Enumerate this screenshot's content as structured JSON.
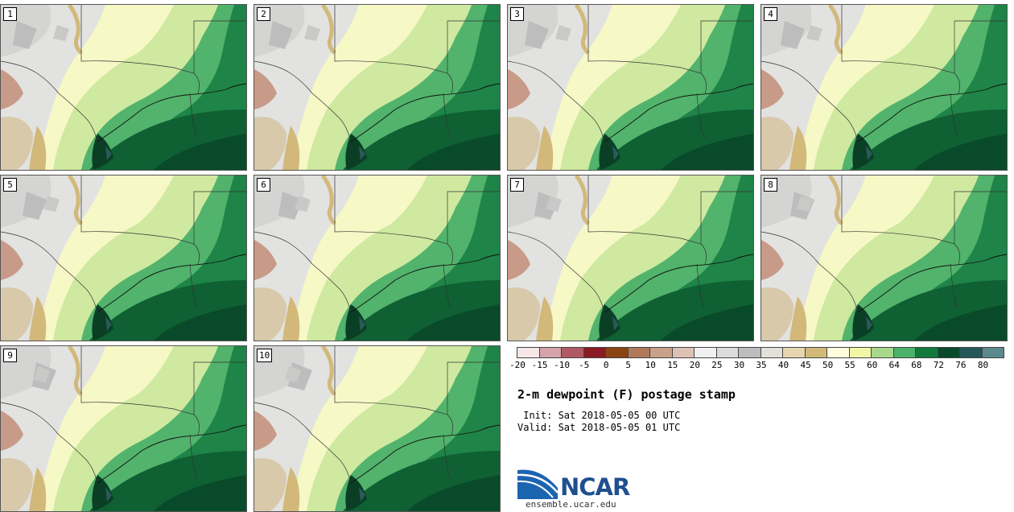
{
  "panels": [
    {
      "label": "1"
    },
    {
      "label": "2"
    },
    {
      "label": "3"
    },
    {
      "label": "4"
    },
    {
      "label": "5"
    },
    {
      "label": "6"
    },
    {
      "label": "7"
    },
    {
      "label": "8"
    },
    {
      "label": "9"
    },
    {
      "label": "10"
    }
  ],
  "legend": {
    "colors": [
      "#f5e6e8",
      "#d6a3aa",
      "#b05a66",
      "#8a1a24",
      "#8b4513",
      "#b07a5a",
      "#c9a08a",
      "#ddc2b4",
      "#f0f0f0",
      "#dcdcdc",
      "#bdbdbd",
      "#e3e1d9",
      "#e6d6b0",
      "#d2b97a",
      "#ffffdd",
      "#f2f7a8",
      "#a8d98a",
      "#4cb26a",
      "#127a3c",
      "#0a4a2c",
      "#24585a",
      "#5a8a8c"
    ],
    "tick_labels": [
      "-20",
      "-15",
      "-10",
      "-5",
      "0",
      "5",
      "10",
      "15",
      "20",
      "25",
      "30",
      "35",
      "40",
      "45",
      "50",
      "55",
      "60",
      "64",
      "68",
      "72",
      "76",
      "80"
    ]
  },
  "title": "2-m dewpoint (F) postage stamp",
  "init_line": " Init: Sat 2018-05-05 00 UTC",
  "valid_line": "Valid: Sat 2018-05-05 01 UTC",
  "logo": {
    "text": "NCAR",
    "url": "ensemble.ucar.edu"
  }
}
